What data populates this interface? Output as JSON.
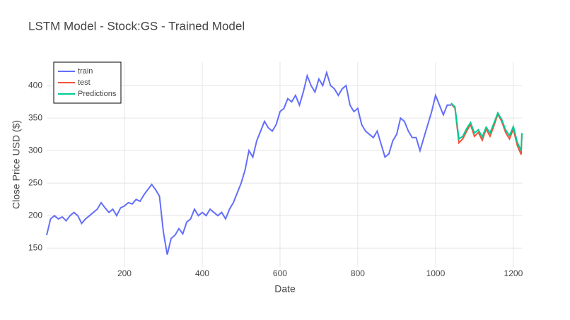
{
  "chart_data": {
    "type": "line",
    "title": "LSTM Model - Stock:GS - Trained Model",
    "x_label": "Date",
    "y_label": "Close Price USD ($)",
    "xlim": [
      0,
      1222
    ],
    "ylim": [
      121,
      436
    ],
    "xticks": [
      200,
      400,
      600,
      800,
      1000,
      1200
    ],
    "yticks": [
      150,
      200,
      250,
      300,
      350,
      400
    ],
    "grid": true,
    "legend": "top-left",
    "series": [
      {
        "name": "train",
        "color": "#636efa",
        "x": [
          0,
          10,
          20,
          30,
          40,
          50,
          60,
          70,
          80,
          90,
          100,
          110,
          120,
          130,
          140,
          150,
          160,
          170,
          180,
          190,
          200,
          210,
          220,
          230,
          240,
          250,
          260,
          270,
          280,
          290,
          300,
          310,
          320,
          330,
          340,
          350,
          360,
          370,
          380,
          390,
          400,
          410,
          420,
          430,
          440,
          450,
          460,
          470,
          480,
          490,
          500,
          510,
          520,
          530,
          540,
          550,
          560,
          570,
          580,
          590,
          600,
          610,
          620,
          630,
          640,
          650,
          660,
          670,
          680,
          690,
          700,
          710,
          720,
          730,
          740,
          750,
          760,
          770,
          780,
          790,
          800,
          810,
          820,
          830,
          840,
          850,
          860,
          870,
          880,
          890,
          900,
          910,
          920,
          930,
          940,
          950,
          960,
          970,
          980,
          990,
          1000,
          1010,
          1020,
          1030,
          1040
        ],
        "values": [
          170,
          195,
          200,
          195,
          198,
          192,
          200,
          205,
          200,
          188,
          195,
          200,
          205,
          210,
          220,
          212,
          205,
          210,
          200,
          212,
          215,
          220,
          218,
          225,
          222,
          232,
          240,
          248,
          240,
          230,
          175,
          140,
          165,
          170,
          180,
          172,
          190,
          195,
          210,
          200,
          205,
          200,
          210,
          205,
          200,
          205,
          195,
          210,
          220,
          235,
          250,
          270,
          300,
          290,
          315,
          330,
          345,
          335,
          330,
          340,
          360,
          365,
          380,
          375,
          385,
          370,
          390,
          415,
          400,
          390,
          410,
          400,
          420,
          400,
          395,
          385,
          395,
          400,
          370,
          360,
          365,
          340,
          330,
          325,
          320,
          330,
          310,
          290,
          295,
          315,
          325,
          350,
          345,
          330,
          320,
          320,
          300,
          320,
          340,
          360,
          385,
          370,
          355,
          370,
          370
        ]
      },
      {
        "name": "test",
        "color": "#ef553b",
        "x": [
          1040,
          1050,
          1060,
          1070,
          1080,
          1090,
          1100,
          1110,
          1120,
          1130,
          1140,
          1150,
          1160,
          1170,
          1180,
          1190,
          1200,
          1210,
          1220,
          1222
        ],
        "values": [
          372,
          365,
          312,
          318,
          330,
          340,
          322,
          328,
          316,
          333,
          322,
          338,
          356,
          345,
          328,
          318,
          333,
          308,
          294,
          325
        ]
      },
      {
        "name": "Predictions",
        "color": "#00cc96",
        "x": [
          1040,
          1050,
          1060,
          1070,
          1080,
          1090,
          1100,
          1110,
          1120,
          1130,
          1140,
          1150,
          1160,
          1170,
          1180,
          1190,
          1200,
          1210,
          1220,
          1222
        ],
        "values": [
          373,
          367,
          318,
          322,
          334,
          343,
          327,
          332,
          321,
          336,
          327,
          342,
          358,
          348,
          332,
          323,
          337,
          313,
          300,
          327
        ]
      }
    ]
  }
}
